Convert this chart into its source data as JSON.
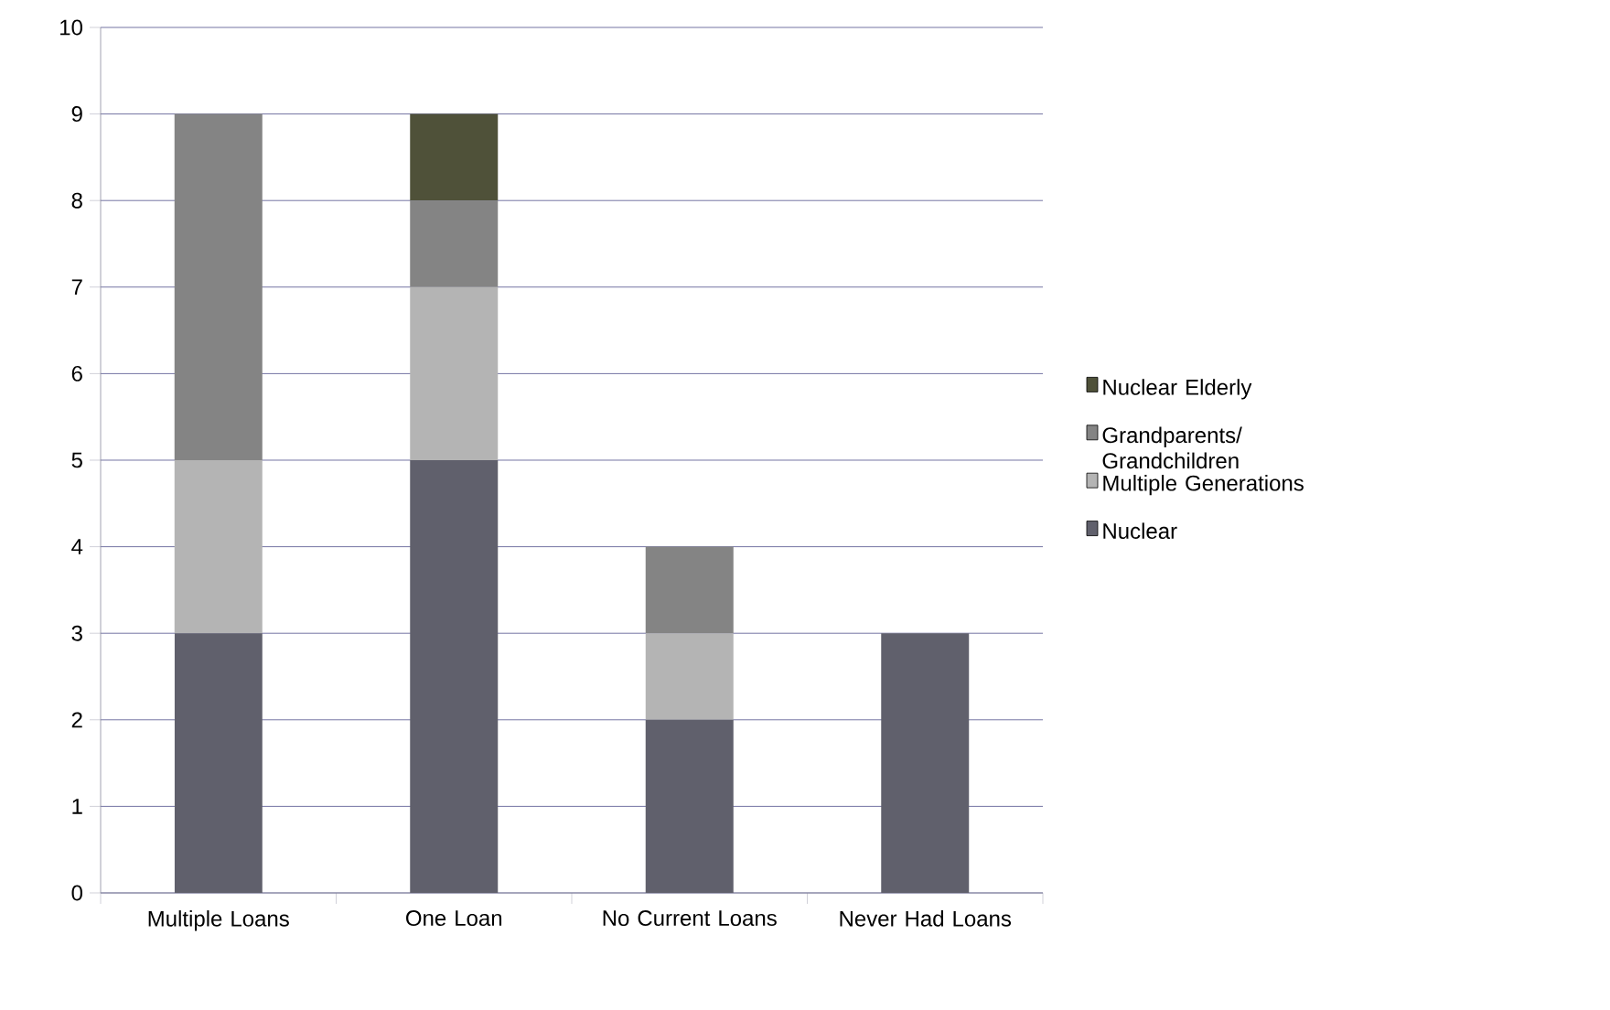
{
  "chart_data": {
    "type": "bar",
    "stacked": true,
    "categories": [
      "Multiple Loans",
      "One Loan",
      "No Current Loans",
      "Never Had Loans"
    ],
    "series": [
      {
        "name": "Nuclear",
        "color": "#60606c",
        "values": [
          3,
          5,
          2,
          3
        ]
      },
      {
        "name": "Multiple Generations",
        "color": "#b4b4b4",
        "values": [
          2,
          2,
          1,
          0
        ]
      },
      {
        "name": "Grandparents/ Grandchildren",
        "color": "#848484",
        "values": [
          4,
          1,
          1,
          0
        ]
      },
      {
        "name": "Nuclear Elderly",
        "color": "#4f5139",
        "values": [
          0,
          1,
          0,
          0
        ]
      }
    ],
    "ylim": [
      0,
      10
    ],
    "yticks": [
      0,
      1,
      2,
      3,
      4,
      5,
      6,
      7,
      8,
      9,
      10
    ],
    "grid": "y",
    "legend": "right"
  }
}
